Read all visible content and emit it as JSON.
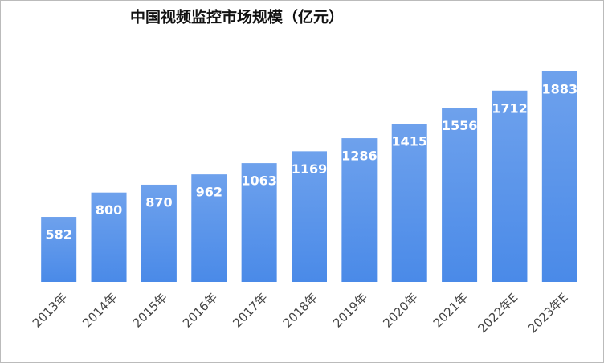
{
  "chart_data": {
    "type": "bar",
    "title": "中国视频监控市场规模（亿元）",
    "categories": [
      "2013年",
      "2014年",
      "2015年",
      "2016年",
      "2017年",
      "2018年",
      "2019年",
      "2020年",
      "2021年",
      "2022年E",
      "2023年E"
    ],
    "values": [
      582,
      800,
      870,
      962,
      1063,
      1169,
      1286,
      1415,
      1556,
      1712,
      1883
    ],
    "color": "#4a8ae8"
  }
}
